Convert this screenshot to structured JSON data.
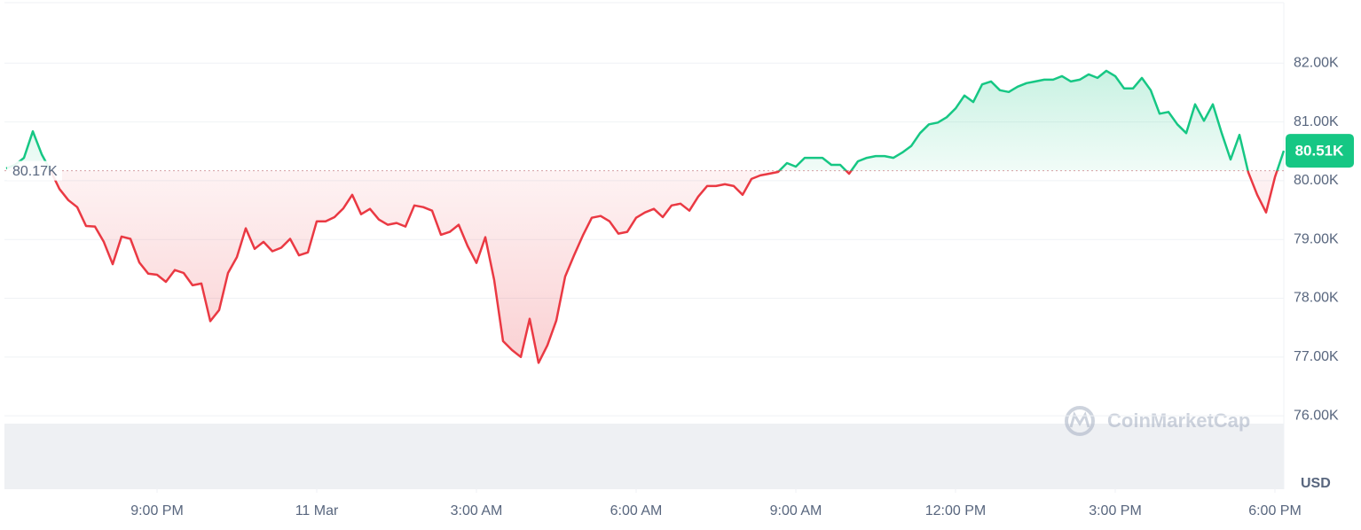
{
  "chart_data": {
    "type": "area",
    "x": [
      -350,
      -340,
      -330,
      -320,
      -310,
      -300,
      -290,
      -280,
      -270,
      -260,
      -250,
      -240,
      -230,
      -220,
      -210,
      -200,
      -190,
      -180,
      -170,
      -160,
      -150,
      -140,
      -130,
      -120,
      -110,
      -100,
      -90,
      -80,
      -70,
      -60,
      -50,
      -40,
      -30,
      -20,
      -10,
      0,
      10,
      20,
      30,
      40,
      50,
      60,
      70,
      80,
      90,
      100,
      110,
      120,
      130,
      140,
      150,
      160,
      170,
      180,
      190,
      200,
      210,
      220,
      230,
      240,
      250,
      260,
      270,
      280,
      290,
      300,
      310,
      320,
      330,
      340,
      350,
      360,
      370,
      380,
      390,
      400,
      410,
      420,
      430,
      440,
      450,
      460,
      470,
      480,
      490,
      500,
      510,
      520,
      530,
      540,
      550,
      560,
      570,
      580,
      590,
      600,
      610,
      620,
      630,
      640,
      650,
      660,
      670,
      680,
      690,
      700,
      710,
      720,
      730,
      740,
      750,
      760,
      770,
      780,
      790,
      800,
      810,
      820,
      830,
      840,
      850,
      860,
      870,
      880,
      890,
      900,
      910,
      920,
      930,
      940,
      950,
      960,
      970,
      980,
      990,
      1000,
      1010,
      1020,
      1030,
      1040,
      1050,
      1060,
      1070,
      1080,
      1090
    ],
    "values": [
      80210,
      80270,
      80390,
      80840,
      80450,
      80170,
      79860,
      79670,
      79550,
      79230,
      79220,
      78960,
      78580,
      79050,
      79010,
      78610,
      78420,
      78400,
      78280,
      78480,
      78430,
      78220,
      78250,
      77610,
      77800,
      78430,
      78700,
      79190,
      78840,
      78960,
      78800,
      78860,
      79010,
      78730,
      78780,
      79310,
      79310,
      79380,
      79530,
      79760,
      79430,
      79520,
      79340,
      79250,
      79280,
      79220,
      79580,
      79550,
      79490,
      79080,
      79130,
      79250,
      78890,
      78600,
      79040,
      78310,
      77270,
      77120,
      77000,
      77650,
      76900,
      77200,
      77620,
      78370,
      78730,
      79070,
      79370,
      79400,
      79310,
      79100,
      79130,
      79370,
      79460,
      79520,
      79380,
      79580,
      79610,
      79490,
      79730,
      79910,
      79910,
      79940,
      79910,
      79760,
      80030,
      80090,
      80120,
      80150,
      80300,
      80240,
      80390,
      80390,
      80390,
      80270,
      80270,
      80120,
      80330,
      80390,
      80420,
      80420,
      80390,
      80480,
      80590,
      80810,
      80960,
      80990,
      81080,
      81230,
      81450,
      81340,
      81640,
      81690,
      81540,
      81510,
      81600,
      81660,
      81690,
      81720,
      81720,
      81780,
      81690,
      81720,
      81810,
      81750,
      81870,
      81780,
      81570,
      81570,
      81750,
      81540,
      81140,
      81170,
      80960,
      80810,
      81300,
      81020,
      81300,
      80810,
      80360,
      80780,
      80140,
      79760,
      79460,
      80060,
      80510
    ],
    "up_color": "#16c784",
    "down_color": "#ea3943",
    "reference": {
      "value": 80170,
      "label": "80.17K"
    },
    "current": {
      "value": 80510,
      "label": "80.51K"
    },
    "xlim": [
      -352,
      1090
    ],
    "xticks": [
      {
        "value": -180,
        "label": "9:00 PM"
      },
      {
        "value": 0,
        "label": "11 Mar"
      },
      {
        "value": 180,
        "label": "3:00 AM"
      },
      {
        "value": 360,
        "label": "6:00 AM"
      },
      {
        "value": 540,
        "label": "9:00 AM"
      },
      {
        "value": 720,
        "label": "12:00 PM"
      },
      {
        "value": 900,
        "label": "3:00 PM"
      },
      {
        "value": 1080,
        "label": "6:00 PM"
      }
    ],
    "ylim": [
      74750,
      83000
    ],
    "yticks": [
      {
        "value": 76000,
        "label": "76.00K"
      },
      {
        "value": 77000,
        "label": "77.00K"
      },
      {
        "value": 78000,
        "label": "78.00K"
      },
      {
        "value": 79000,
        "label": "79.00K"
      },
      {
        "value": 80000,
        "label": "80.00K"
      },
      {
        "value": 81000,
        "label": "81.00K"
      },
      {
        "value": 82000,
        "label": "82.00K"
      }
    ],
    "y_label": "USD",
    "watermark": "CoinMarketCap",
    "grid": true
  }
}
